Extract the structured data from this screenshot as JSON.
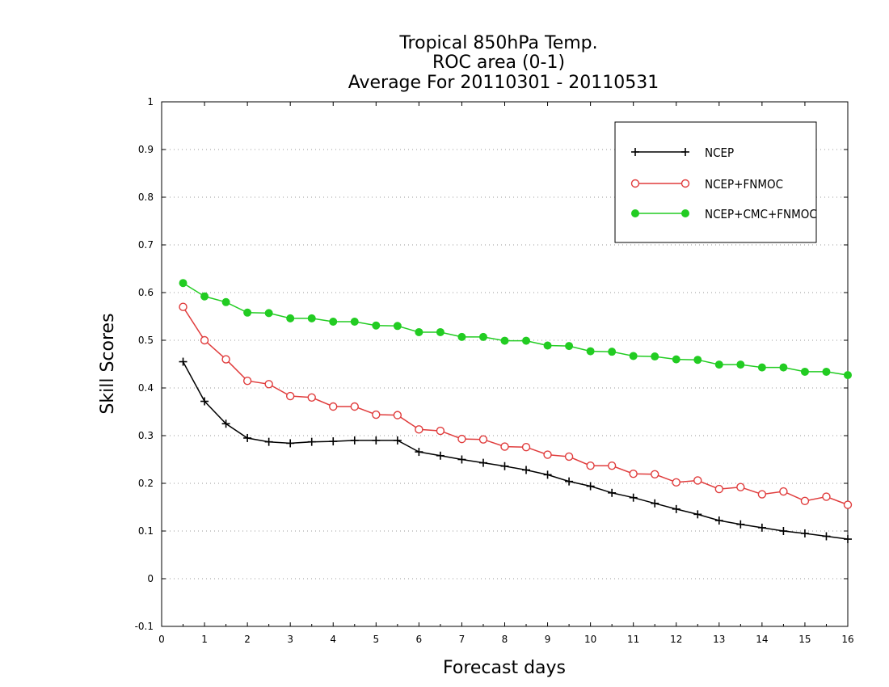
{
  "chart_data": {
    "type": "line",
    "title_lines": [
      "Tropical 850hPa Temp.",
      "ROC area (0-1)",
      "Average For 20110301 - 20110531"
    ],
    "xlabel": "Forecast days",
    "ylabel": "Skill Scores",
    "xlim": [
      0,
      16
    ],
    "ylim": [
      -0.1,
      1
    ],
    "x_ticks": [
      0,
      1,
      2,
      3,
      4,
      5,
      6,
      7,
      8,
      9,
      10,
      11,
      12,
      13,
      14,
      15,
      16
    ],
    "y_ticks": [
      -0.1,
      0,
      0.1,
      0.2,
      0.3,
      0.4,
      0.5,
      0.6,
      0.7,
      0.8,
      0.9,
      1
    ],
    "y_tick_labels": [
      "-0.1",
      "0",
      "0.1",
      "0.2",
      "0.3",
      "0.4",
      "0.5",
      "0.6",
      "0.7",
      "0.8",
      "0.9",
      "1"
    ],
    "grid": "horizontal dotted",
    "legend_position": "top-right",
    "x": [
      0.5,
      1,
      1.5,
      2,
      2.5,
      3,
      3.5,
      4,
      4.5,
      5,
      5.5,
      6,
      6.5,
      7,
      7.5,
      8,
      8.5,
      9,
      9.5,
      10,
      10.5,
      11,
      11.5,
      12,
      12.5,
      13,
      13.5,
      14,
      14.5,
      15,
      15.5,
      16
    ],
    "series": [
      {
        "name": "NCEP",
        "color": "#000000",
        "marker": "plus",
        "values": [
          0.455,
          0.372,
          0.325,
          0.295,
          0.287,
          0.284,
          0.287,
          0.288,
          0.29,
          0.29,
          0.29,
          0.266,
          0.258,
          0.25,
          0.243,
          0.236,
          0.228,
          0.218,
          0.204,
          0.194,
          0.18,
          0.17,
          0.158,
          0.146,
          0.135,
          0.122,
          0.114,
          0.107,
          0.1,
          0.095,
          0.089,
          0.083
        ]
      },
      {
        "name": "NCEP+FNMOC",
        "color": "#e03c3c",
        "marker": "open-circle",
        "values": [
          0.57,
          0.5,
          0.46,
          0.415,
          0.408,
          0.383,
          0.38,
          0.361,
          0.361,
          0.344,
          0.343,
          0.313,
          0.31,
          0.293,
          0.292,
          0.277,
          0.276,
          0.26,
          0.256,
          0.237,
          0.237,
          0.22,
          0.219,
          0.202,
          0.206,
          0.188,
          0.192,
          0.177,
          0.183,
          0.163,
          0.172,
          0.155
        ]
      },
      {
        "name": "NCEP+CMC+FNMOC",
        "color": "#22cc22",
        "marker": "filled-circle",
        "values": [
          0.62,
          0.592,
          0.58,
          0.558,
          0.557,
          0.546,
          0.546,
          0.539,
          0.539,
          0.531,
          0.53,
          0.517,
          0.517,
          0.507,
          0.507,
          0.499,
          0.499,
          0.489,
          0.488,
          0.477,
          0.476,
          0.467,
          0.466,
          0.46,
          0.459,
          0.449,
          0.449,
          0.443,
          0.443,
          0.434,
          0.434,
          0.427
        ]
      }
    ]
  }
}
